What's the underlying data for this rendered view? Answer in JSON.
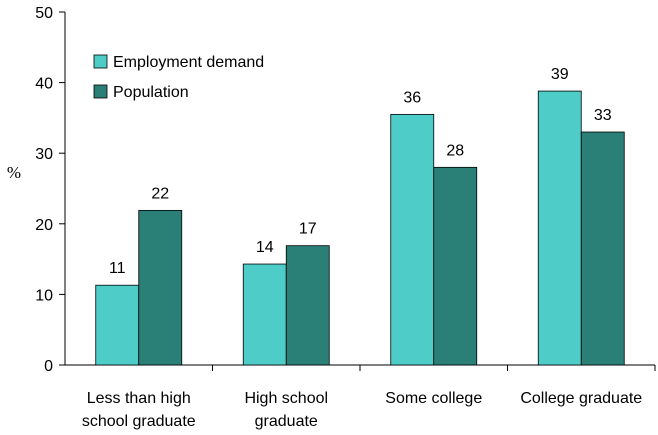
{
  "chart_data": {
    "type": "bar",
    "ylabel": "%",
    "ylim": [
      0,
      50
    ],
    "yticks": [
      0,
      10,
      20,
      30,
      40,
      50
    ],
    "categories": [
      [
        "Less than high",
        "school graduate"
      ],
      [
        "High school",
        "graduate"
      ],
      [
        "Some college"
      ],
      [
        "College graduate"
      ]
    ],
    "series": [
      {
        "name": "Employment demand",
        "values": [
          11.3,
          14.3,
          35.5,
          38.8
        ],
        "labels": [
          "11",
          "14",
          "36",
          "39"
        ],
        "color": "#4ecdc8"
      },
      {
        "name": "Population",
        "values": [
          21.9,
          16.9,
          28.0,
          33.0
        ],
        "labels": [
          "22",
          "17",
          "28",
          "33"
        ],
        "color": "#2a7f77"
      }
    ],
    "legend": "top-left",
    "grid": false
  }
}
